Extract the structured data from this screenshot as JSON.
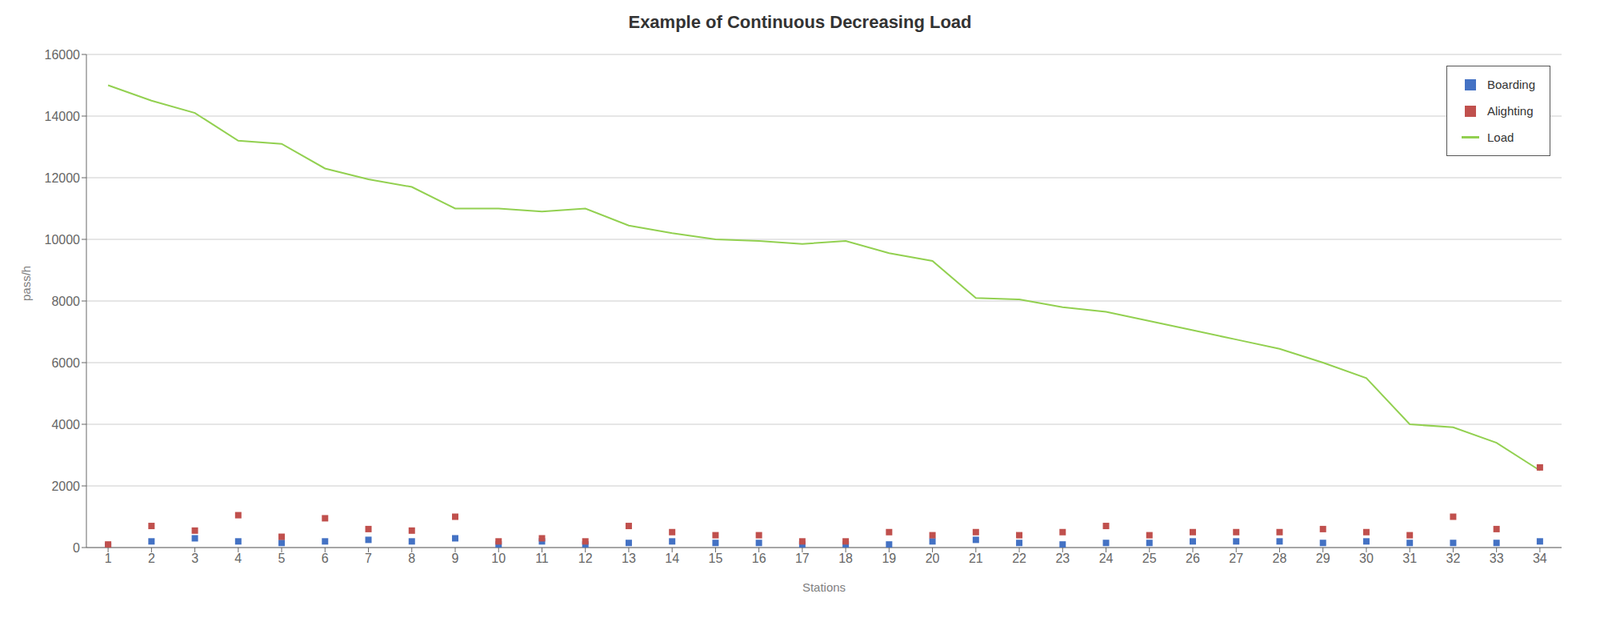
{
  "chart_data": {
    "type": "line",
    "title": "Example of Continuous Decreasing Load",
    "xlabel": "Stations",
    "ylabel": "pass/h",
    "x": [
      1,
      2,
      3,
      4,
      5,
      6,
      7,
      8,
      9,
      10,
      11,
      12,
      13,
      14,
      15,
      16,
      17,
      18,
      19,
      20,
      21,
      22,
      23,
      24,
      25,
      26,
      27,
      28,
      29,
      30,
      31,
      32,
      33,
      34
    ],
    "series": [
      {
        "name": "Boarding",
        "type": "scatter",
        "marker": "square",
        "color": "#4472C4",
        "values": [
          50,
          200,
          300,
          200,
          150,
          200,
          250,
          200,
          300,
          100,
          200,
          100,
          150,
          200,
          150,
          150,
          100,
          100,
          100,
          200,
          250,
          150,
          100,
          150,
          150,
          200,
          200,
          200,
          150,
          200,
          150,
          150,
          150,
          200
        ]
      },
      {
        "name": "Alighting",
        "type": "scatter",
        "marker": "square",
        "color": "#C0504D",
        "values": [
          100,
          700,
          550,
          1050,
          350,
          950,
          600,
          550,
          1000,
          200,
          300,
          200,
          700,
          500,
          400,
          400,
          200,
          200,
          500,
          400,
          500,
          400,
          500,
          700,
          400,
          500,
          500,
          500,
          600,
          500,
          400,
          1000,
          600,
          2600
        ]
      },
      {
        "name": "Load",
        "type": "line",
        "color": "#92D050",
        "values": [
          15000,
          14500,
          14100,
          13200,
          13100,
          12300,
          11950,
          11700,
          11000,
          11000,
          10900,
          11000,
          10450,
          10200,
          10000,
          9950,
          9850,
          9950,
          9550,
          9300,
          8100,
          8050,
          7800,
          7650,
          7350,
          7050,
          6750,
          6450,
          6000,
          5500,
          4000,
          3900,
          3400,
          2500
        ]
      }
    ],
    "xlim": [
      0.5,
      34.5
    ],
    "xticks": [
      1,
      2,
      3,
      4,
      5,
      6,
      7,
      8,
      9,
      10,
      11,
      12,
      13,
      14,
      15,
      16,
      17,
      18,
      19,
      20,
      21,
      22,
      23,
      24,
      25,
      26,
      27,
      28,
      29,
      30,
      31,
      32,
      33,
      34
    ],
    "ylim": [
      0,
      16000
    ],
    "yticks": [
      0,
      2000,
      4000,
      6000,
      8000,
      10000,
      12000,
      14000,
      16000
    ],
    "grid": "y",
    "legend": "upper right"
  }
}
